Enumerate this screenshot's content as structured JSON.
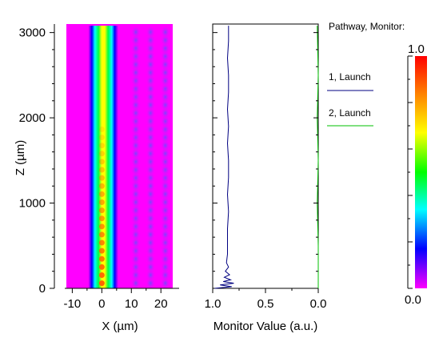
{
  "chart_data": [
    {
      "type": "heatmap",
      "title": "",
      "xlabel": "X (µm)",
      "ylabel": "Z (µm)",
      "xlim": [
        -12,
        24
      ],
      "ylim": [
        0,
        3100
      ],
      "xticks": [
        "-10",
        "0",
        "10",
        "20"
      ],
      "xtick_values": [
        -10,
        0,
        10,
        20
      ],
      "yticks": [
        "0",
        "1000",
        "2000",
        "3000"
      ],
      "ytick_values": [
        0,
        1000,
        2000,
        3000
      ],
      "x_extent": [
        -11,
        21
      ],
      "z_extent": [
        0,
        3080
      ],
      "waveguide_core_x": [
        -3.5,
        4.5
      ],
      "colorscale": [
        "#ff00ff",
        "#0000ff",
        "#00ffff",
        "#00ff00",
        "#ffff00",
        "#ff0000"
      ]
    },
    {
      "type": "line",
      "xlabel": "Monitor Value (a.u.)",
      "xlim": [
        1.0,
        0.0
      ],
      "ylim": [
        0,
        3100
      ],
      "xticks": [
        "1.0",
        "0.5",
        "0.0"
      ],
      "xtick_values": [
        1.0,
        0.5,
        0.0
      ],
      "legend_title": "Pathway, Monitor:",
      "legend_placement": "right",
      "series": [
        {
          "name": "1, Launch",
          "color": "#000080",
          "z": [
            0,
            20,
            40,
            60,
            80,
            100,
            130,
            160,
            200,
            250,
            300,
            400,
            500,
            700,
            900,
            1100,
            1300,
            1500,
            1700,
            1900,
            2100,
            2300,
            2500,
            2700,
            2900,
            3080
          ],
          "values": [
            0.98,
            0.82,
            0.93,
            0.8,
            0.9,
            0.83,
            0.89,
            0.84,
            0.88,
            0.85,
            0.87,
            0.86,
            0.86,
            0.86,
            0.85,
            0.86,
            0.85,
            0.85,
            0.86,
            0.85,
            0.86,
            0.85,
            0.85,
            0.86,
            0.85,
            0.85
          ]
        },
        {
          "name": "2, Launch",
          "color": "#00c000",
          "z": [
            0,
            500,
            1000,
            1500,
            2000,
            2500,
            3080
          ],
          "values": [
            0.0,
            0.0,
            0.01,
            0.0,
            0.01,
            0.0,
            0.01
          ]
        }
      ]
    },
    {
      "type": "colorbar",
      "range": [
        0.0,
        1.0
      ],
      "labels": [
        "1.0",
        "0.0"
      ],
      "colors": [
        "#ff0000",
        "#ff8000",
        "#ffff00",
        "#00ff00",
        "#00ffff",
        "#0000ff",
        "#ff00ff"
      ]
    }
  ]
}
